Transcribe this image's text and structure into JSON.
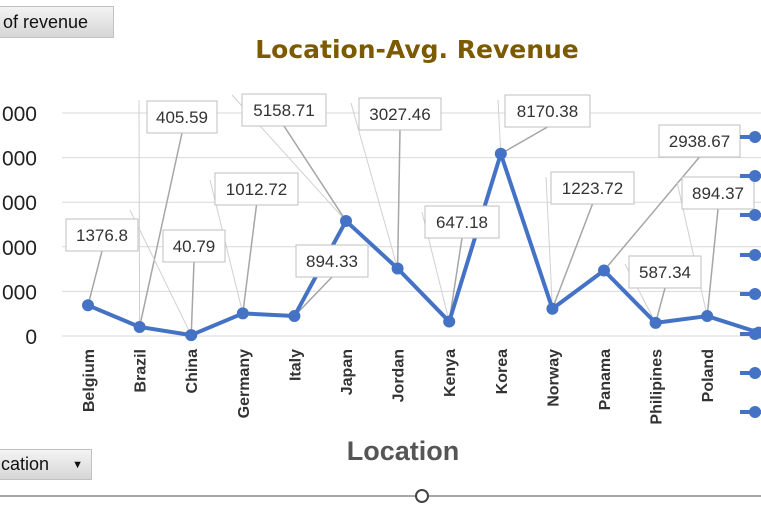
{
  "field_buttons": {
    "value_field_label": "of revenue",
    "axis_field_label": "cation",
    "axis_field_arrow": "▼"
  },
  "colors": {
    "series": "#4472c4",
    "title": "#7b5a00",
    "grid": "#d9d9d9"
  },
  "chart_data": {
    "type": "line",
    "title": "Location-Avg. Revenue",
    "xlabel": "Location",
    "ylabel": "",
    "categories": [
      "Belgium",
      "Brazil",
      "China",
      "Germany",
      "Italy",
      "Japan",
      "Jordan",
      "Kenya",
      "Korea",
      "Norway",
      "Panama",
      "Philipines",
      "Poland",
      ""
    ],
    "values": [
      1376.8,
      405.59,
      40.79,
      1012.72,
      894.33,
      5158.71,
      3027.46,
      647.18,
      8170.38,
      1223.72,
      2938.67,
      587.34,
      894.37,
      150
    ],
    "data_labels": [
      "1376.8",
      "405.59",
      "40.79",
      "1012.72",
      "894.33",
      "5158.71",
      "3027.46",
      "647.18",
      "8170.38",
      "1223.72",
      "2938.67",
      "587.34",
      "894.37",
      ""
    ],
    "y_tick_labels": [
      "0",
      "000",
      "000",
      "000",
      "000",
      "000"
    ],
    "ylim": [
      0,
      10000
    ],
    "grid": true,
    "legend": "right (cropped)"
  }
}
